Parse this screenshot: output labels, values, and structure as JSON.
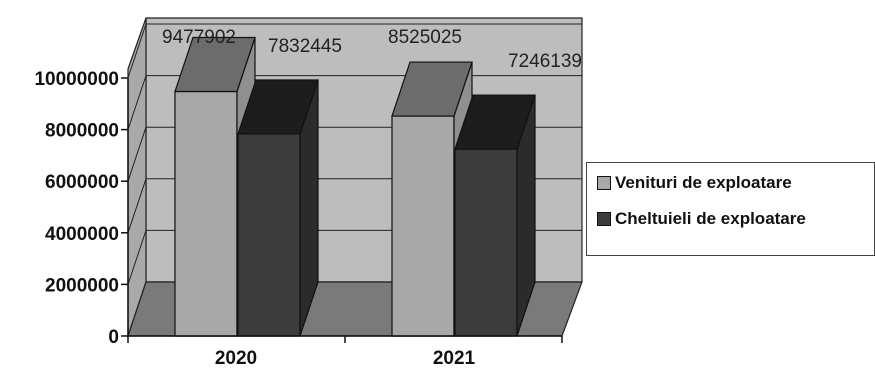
{
  "chart_data": {
    "type": "bar",
    "title": "",
    "xlabel": "",
    "ylabel": "",
    "categories": [
      "2020",
      "2021"
    ],
    "ylim": [
      0,
      10000000
    ],
    "yticks": [
      0,
      2000000,
      4000000,
      6000000,
      8000000,
      10000000
    ],
    "ytick_labels": [
      "0",
      "2000000",
      "4000000",
      "6000000",
      "8000000",
      "10000000"
    ],
    "grid": true,
    "legend_position": "right",
    "series": [
      {
        "name": "Venituri de exploatare",
        "values": [
          9477902,
          8525025
        ],
        "data_labels": [
          "9477902",
          "8525025"
        ],
        "color": "#a8a8a8"
      },
      {
        "name": "Cheltuieli de exploatare",
        "values": [
          7832445,
          7246139
        ],
        "data_labels": [
          "7832445",
          "7246139"
        ],
        "color": "#3c3c3c"
      }
    ]
  }
}
